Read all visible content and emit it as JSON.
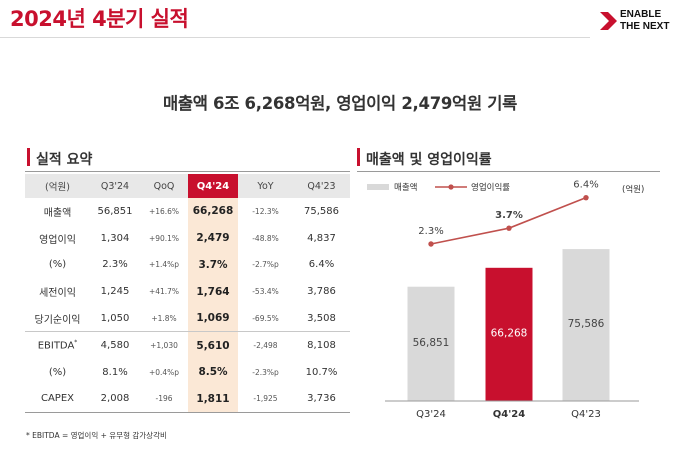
{
  "title": "2024년 4분기 실적",
  "logo": {
    "line1": "ENABLE",
    "line2": "THE NEXT"
  },
  "headline": "매출액 6조 6,268억원, 영업이익 2,479억원 기록",
  "summary": {
    "section_title": "실적 요약",
    "header": [
      "(억원)",
      "Q3'24",
      "QoQ",
      "Q4'24",
      "YoY",
      "Q4'23"
    ],
    "rows": [
      {
        "label": "매출액",
        "q3_24": "56,851",
        "qoq": "+16.6%",
        "q4_24": "66,268",
        "yoy": "-12.3%",
        "q4_23": "75,586"
      },
      {
        "label": "영업이익",
        "q3_24": "1,304",
        "qoq": "+90.1%",
        "q4_24": "2,479",
        "yoy": "-48.8%",
        "q4_23": "4,837"
      },
      {
        "label": "(%)",
        "q3_24": "2.3%",
        "qoq": "+1.4%p",
        "q4_24": "3.7%",
        "yoy": "-2.7%p",
        "q4_23": "6.4%"
      },
      {
        "label": "세전이익",
        "q3_24": "1,245",
        "qoq": "+41.7%",
        "q4_24": "1,764",
        "yoy": "-53.4%",
        "q4_23": "3,786"
      },
      {
        "label": "당기순이익",
        "q3_24": "1,050",
        "qoq": "+1.8%",
        "q4_24": "1,069",
        "yoy": "-69.5%",
        "q4_23": "3,508"
      },
      {
        "label": "EBITDA",
        "label_sup": "*",
        "q3_24": "4,580",
        "qoq": "+1,030",
        "q4_24": "5,610",
        "yoy": "-2,498",
        "q4_23": "8,108"
      },
      {
        "label": "(%)",
        "q3_24": "8.1%",
        "qoq": "+0.4%p",
        "q4_24": "8.5%",
        "yoy": "-2.3%p",
        "q4_23": "10.7%"
      },
      {
        "label": "CAPEX",
        "q3_24": "2,008",
        "qoq": "-196",
        "q4_24": "1,811",
        "yoy": "-1,925",
        "q4_23": "3,736"
      }
    ],
    "footnote": "* EBITDA = 영업이익 + 유무형 감가상각비"
  },
  "chart_section_title": "매출액 및 영업이익률",
  "colors": {
    "accent": "#c8102e",
    "bar_gray": "#d9d9d9",
    "highlight": "#fbe8d6",
    "line": "#c0504d"
  },
  "chart_data": {
    "type": "bar",
    "categories": [
      "Q3'24",
      "Q4'24",
      "Q4'23"
    ],
    "series": [
      {
        "name": "매출액",
        "values": [
          56851,
          66268,
          75586
        ],
        "labels": [
          "56,851",
          "66,268",
          "75,586"
        ]
      },
      {
        "name": "영업이익률",
        "type": "line",
        "values": [
          2.3,
          3.7,
          6.4
        ],
        "labels": [
          "2.3%",
          "3.7%",
          "6.4%"
        ]
      }
    ],
    "unit_label": "(억원)",
    "highlight_category": "Q4'24",
    "legend_position": "top-left"
  }
}
